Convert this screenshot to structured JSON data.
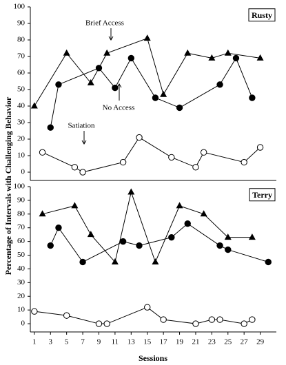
{
  "y_label": "Percentage of Intervals with Challenging Behavior",
  "x_label": "Sessions",
  "chart_data": [
    {
      "type": "line",
      "panel_label": "Rusty",
      "xlim": [
        0.5,
        31
      ],
      "ylim": [
        -5,
        100
      ],
      "yticks": [
        0,
        10,
        20,
        30,
        40,
        50,
        60,
        70,
        80,
        90,
        100
      ],
      "series": [
        {
          "name": "Brief Access",
          "color": "#000000",
          "marker": "triangle",
          "x": [
            1,
            5,
            8,
            10,
            15,
            17,
            20,
            23,
            25,
            29
          ],
          "values": [
            40,
            72,
            54,
            72,
            81,
            47,
            72,
            69,
            72,
            69
          ]
        },
        {
          "name": "No Access",
          "color": "#000000",
          "marker": "filled-circle",
          "x": [
            3,
            4,
            9,
            11,
            13,
            16,
            19,
            24,
            26,
            28
          ],
          "values": [
            27,
            53,
            63,
            51,
            69,
            45,
            39,
            53,
            69,
            45
          ]
        },
        {
          "name": "Satiation",
          "color": "#000000",
          "marker": "open-circle",
          "x": [
            2,
            6,
            7,
            12,
            14,
            18,
            21,
            22,
            27,
            29
          ],
          "values": [
            12,
            3,
            0,
            6,
            21,
            9,
            3,
            12,
            6,
            15
          ]
        }
      ]
    },
    {
      "type": "line",
      "panel_label": "Terry",
      "xlim": [
        0.5,
        31
      ],
      "ylim": [
        -6,
        100
      ],
      "yticks": [
        0,
        10,
        20,
        30,
        40,
        50,
        60,
        70,
        80,
        90,
        100
      ],
      "xticks": [
        1,
        3,
        5,
        7,
        9,
        11,
        13,
        15,
        17,
        19,
        21,
        23,
        25,
        27,
        29
      ],
      "series": [
        {
          "color": "#000000",
          "marker": "triangle",
          "x": [
            2,
            6,
            8,
            11,
            13,
            16,
            19,
            22,
            25,
            28
          ],
          "values": [
            80,
            86,
            65,
            45,
            96,
            45,
            86,
            80,
            63,
            63
          ]
        },
        {
          "color": "#000000",
          "marker": "filled-circle",
          "x": [
            3,
            4,
            7,
            12,
            14,
            18,
            20,
            24,
            25,
            30
          ],
          "values": [
            57,
            70,
            45,
            60,
            57,
            63,
            73,
            57,
            54,
            45
          ]
        },
        {
          "color": "#000000",
          "marker": "open-circle",
          "x": [
            1,
            5,
            9,
            10,
            15,
            17,
            21,
            23,
            24,
            27,
            28
          ],
          "values": [
            9,
            6,
            0,
            0,
            12,
            3,
            0,
            3,
            3,
            0,
            3
          ]
        }
      ]
    }
  ]
}
